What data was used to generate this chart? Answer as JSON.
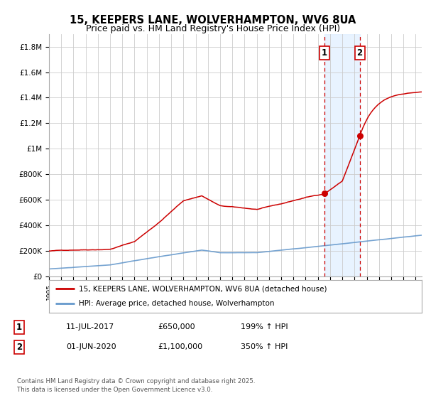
{
  "title": "15, KEEPERS LANE, WOLVERHAMPTON, WV6 8UA",
  "subtitle": "Price paid vs. HM Land Registry's House Price Index (HPI)",
  "title_fontsize": 10.5,
  "subtitle_fontsize": 9,
  "background_color": "#ffffff",
  "plot_bg_color": "#ffffff",
  "grid_color": "#cccccc",
  "ylim": [
    0,
    1900000
  ],
  "yticks": [
    0,
    200000,
    400000,
    600000,
    800000,
    1000000,
    1200000,
    1400000,
    1600000,
    1800000
  ],
  "ytick_labels": [
    "£0",
    "£200K",
    "£400K",
    "£600K",
    "£800K",
    "£1M",
    "£1.2M",
    "£1.4M",
    "£1.6M",
    "£1.8M"
  ],
  "xlim_start": 1995.0,
  "xlim_end": 2025.5,
  "line1_color": "#cc0000",
  "line2_color": "#6699cc",
  "line1_label": "15, KEEPERS LANE, WOLVERHAMPTON, WV6 8UA (detached house)",
  "line2_label": "HPI: Average price, detached house, Wolverhampton",
  "marker_color": "#cc0000",
  "vline1_x": 2017.53,
  "vline2_x": 2020.42,
  "vline_color": "#cc0000",
  "shade_color": "#ddeeff",
  "annotation1_label": "1",
  "annotation2_label": "2",
  "event1_date_str": "11-JUL-2017",
  "event1_price_str": "£650,000",
  "event1_hpi_str": "199% ↑ HPI",
  "event1_y": 650000,
  "event1_x": 2017.53,
  "event2_date_str": "01-JUN-2020",
  "event2_price_str": "£1,100,000",
  "event2_hpi_str": "350% ↑ HPI",
  "event2_y": 1100000,
  "event2_x": 2020.42,
  "footer_text": "Contains HM Land Registry data © Crown copyright and database right 2025.\nThis data is licensed under the Open Government Licence v3.0.",
  "legend_box_color": "#ffffff",
  "legend_border_color": "#999999"
}
